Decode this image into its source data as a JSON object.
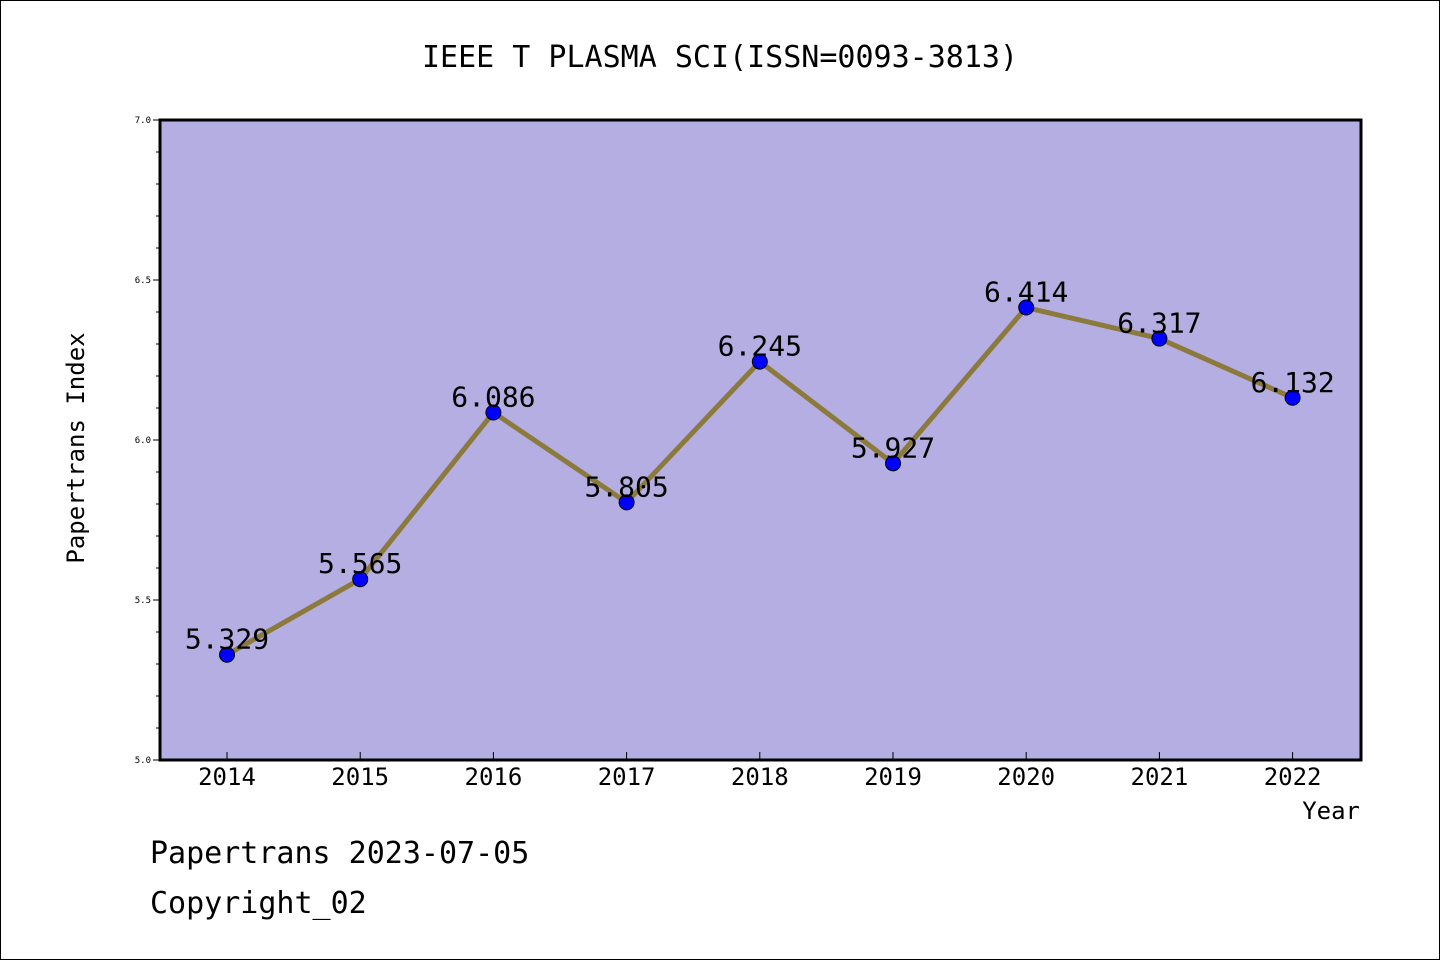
{
  "chart_data": {
    "type": "line",
    "title": "IEEE T PLASMA SCI(ISSN=0093-3813)",
    "xlabel": "Year",
    "ylabel": "Papertrans Index",
    "categories": [
      "2014",
      "2015",
      "2016",
      "2017",
      "2018",
      "2019",
      "2020",
      "2021",
      "2022"
    ],
    "values": [
      5.329,
      5.565,
      6.086,
      5.805,
      6.245,
      5.927,
      6.414,
      6.317,
      6.132
    ],
    "data_labels": [
      "5.329",
      "5.565",
      "6.086",
      "5.805",
      "6.245",
      "5.927",
      "6.414",
      "6.317",
      "6.132"
    ],
    "ylim": [
      5.0,
      7.0
    ],
    "yticks": [
      "5.0",
      "5.5",
      "6.0",
      "6.5",
      "7.0"
    ],
    "grid": false,
    "colors": {
      "plot_background": "#b5aee2",
      "line": "#8b7a3c",
      "marker": "#0000ff"
    }
  },
  "footer": {
    "date_line": "Papertrans 2023-07-05",
    "copyright_line": "Copyright_02"
  }
}
